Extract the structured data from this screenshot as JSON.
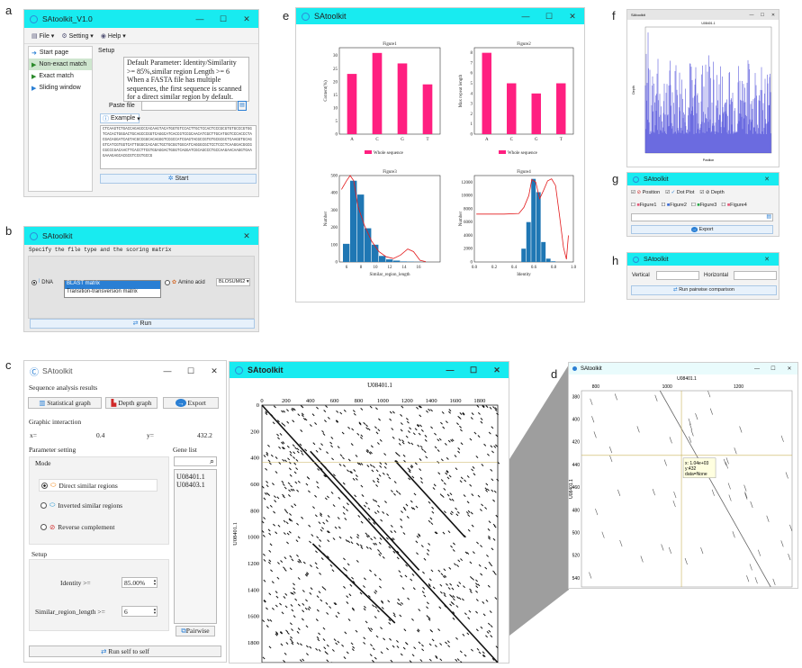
{
  "panels": {
    "a": "a",
    "b": "b",
    "c": "c",
    "d": "d",
    "e": "e",
    "f": "f",
    "g": "g",
    "h": "h"
  },
  "win_a": {
    "title": "SAtoolkit_V1.0",
    "menu": [
      "File",
      "Setting",
      "Help"
    ],
    "nav": [
      "Start page",
      "Non-exact match",
      "Exact match",
      "Sliding window"
    ],
    "setup_label": "Setup",
    "description": "Default Parameter: Identity/Similarity >= 85%,similar region Length >= 6\nWhen a FASTA file has multiple sequences, the first sequence is scanned for a direct similar region by default.",
    "paste_label": "Paste file",
    "example_label": "Example",
    "sequence": "CTCAAGTCTGACCAGAGCCCACAAGTACATGGTGTCCACTTGCTCCACTCCCGCGTGTGCCCGTGGTCACACTGGGACTGCAGCCCGGTCAGGCATCACCGTCCGCAACATCGCTTGCATGGTCCCACCCTACGACAGGATCAGTACGCCGGCACAGGGTCCGCCATCGAGTACGCCGTGTGCGCGCTCAAGGTGCAGGTCATCGTGGTCATTGGGCCACAGCTGCTGCGGTGGCATCAGGGCGCTCCTCCCTCAAGGACGGCGCGCCCGACAACTTCACCTTCGTGGAGGACTGGGTCAGGATCGCAGCCCTGCCAAGAACAAGGTGAAGAAAGAGCACGCGTCCGTGCCG",
    "start_label": "Start"
  },
  "win_b": {
    "title": "SAtoolkit",
    "prompt": "Specify the file type and the scoring matrix",
    "dna_label": "DNA",
    "matrix_options": [
      "BLAST matrix",
      "Transition-transversion matrix"
    ],
    "amino_label": "Amino acid",
    "amino_value": "BLOSUM62",
    "run_label": "Run"
  },
  "win_c": {
    "title": "SAtoolkit",
    "results_label": "Sequence analysis results",
    "stat_btn": "Statistical graph",
    "depth_btn": "Depth graph",
    "export_btn": "Export",
    "interaction_label": "Graphic interaction",
    "x_label": "x=",
    "x_value": "0.4",
    "y_label": "y=",
    "y_value": "432.2",
    "param_label": "Parameter setting",
    "gene_label": "Gene list",
    "mode_label": "Mode",
    "modes": [
      "Direct similar regions",
      "Inverted similar regions",
      "Reverse complement"
    ],
    "genes": [
      "U08401.1",
      "U08403.1"
    ],
    "setup_label": "Setup",
    "identity_label": "Identity >=",
    "identity_value": "85.00%",
    "length_label": "Similar_region_length >=",
    "length_value": "6",
    "pairwise_label": "Pairwise",
    "run_self_label": "Run self to self"
  },
  "win_dot": {
    "title": "SAtoolkit",
    "plot_title": "U08401.1",
    "ylabel": "U08401.1",
    "xticks": [
      "0",
      "200",
      "400",
      "600",
      "800",
      "1000",
      "1200",
      "1400",
      "1600",
      "1800"
    ],
    "yticks": [
      "0",
      "200",
      "400",
      "600",
      "800",
      "1000",
      "1200",
      "1400",
      "1600",
      "1800"
    ]
  },
  "win_d": {
    "title": "SAtoolkit",
    "plot_title": "U08401.1",
    "ylabel": "U08401.1",
    "xticks": [
      "800",
      "1000",
      "1200"
    ],
    "yticks": [
      "380",
      "400",
      "420",
      "440",
      "460",
      "480",
      "500",
      "520",
      "540"
    ],
    "tooltip": [
      "x: 1.04e+03",
      "y:432",
      "data=None"
    ]
  },
  "win_e": {
    "title": "SAtoolkit",
    "legend": "Whole sequence"
  },
  "win_f": {
    "title": "SAtoolkit",
    "plot_title": "U08401.1",
    "xlabel": "Position",
    "ylabel": "Depth"
  },
  "win_g": {
    "title": "SAtoolkit",
    "checks": [
      "Position",
      "Dot Plot",
      "Depth"
    ],
    "figures": [
      "Figure1",
      "Figure2",
      "Figure3",
      "Figure4"
    ],
    "export_label": "Export"
  },
  "win_h": {
    "title": "SAtoolkit",
    "vertical_label": "Vertical",
    "horizontal_label": "Horizontal",
    "run_label": "Run pairwise comparison"
  },
  "colors": {
    "titlebar": "#18ebf0",
    "bar_pink": "#ff1f80",
    "bar_blue": "#1f77b4",
    "curve": "#e31a1c",
    "depth": "#3b3bd6"
  },
  "chart_data": [
    {
      "type": "bar",
      "title": "Figure1",
      "categories": [
        "A",
        "C",
        "G",
        "T"
      ],
      "values": [
        23,
        31,
        27,
        19
      ],
      "ylabel": "Content(%)",
      "ylim": [
        0,
        33
      ],
      "series": [
        {
          "name": "Whole sequence",
          "values": [
            23,
            31,
            27,
            19
          ]
        }
      ]
    },
    {
      "type": "bar",
      "title": "Figure2",
      "categories": [
        "A",
        "C",
        "G",
        "T"
      ],
      "values": [
        8,
        5,
        4,
        5
      ],
      "ylabel": "Max repeat length",
      "ylim": [
        0,
        8.5
      ],
      "series": [
        {
          "name": "Whole sequence",
          "values": [
            8,
            5,
            4,
            5
          ]
        }
      ]
    },
    {
      "type": "bar",
      "title": "Figure3",
      "xlabel": "Similar_region_length",
      "ylabel": "Number",
      "xlim": [
        5,
        19
      ],
      "ylim": [
        0,
        500
      ],
      "bins": [
        6,
        7,
        8,
        9,
        10,
        11,
        12,
        13,
        14,
        15,
        16
      ],
      "values": [
        105,
        470,
        390,
        195,
        100,
        35,
        15,
        8,
        3,
        2,
        1
      ]
    },
    {
      "type": "bar",
      "title": "Figure4",
      "xlabel": "Identity",
      "ylabel": "Number",
      "xlim": [
        0,
        1
      ],
      "ylim": [
        0,
        13000
      ],
      "bins": [
        0.5,
        0.55,
        0.6,
        0.65,
        0.7,
        0.75,
        0.8
      ],
      "values": [
        2000,
        6000,
        12500,
        10500,
        3000,
        500,
        100
      ]
    }
  ]
}
